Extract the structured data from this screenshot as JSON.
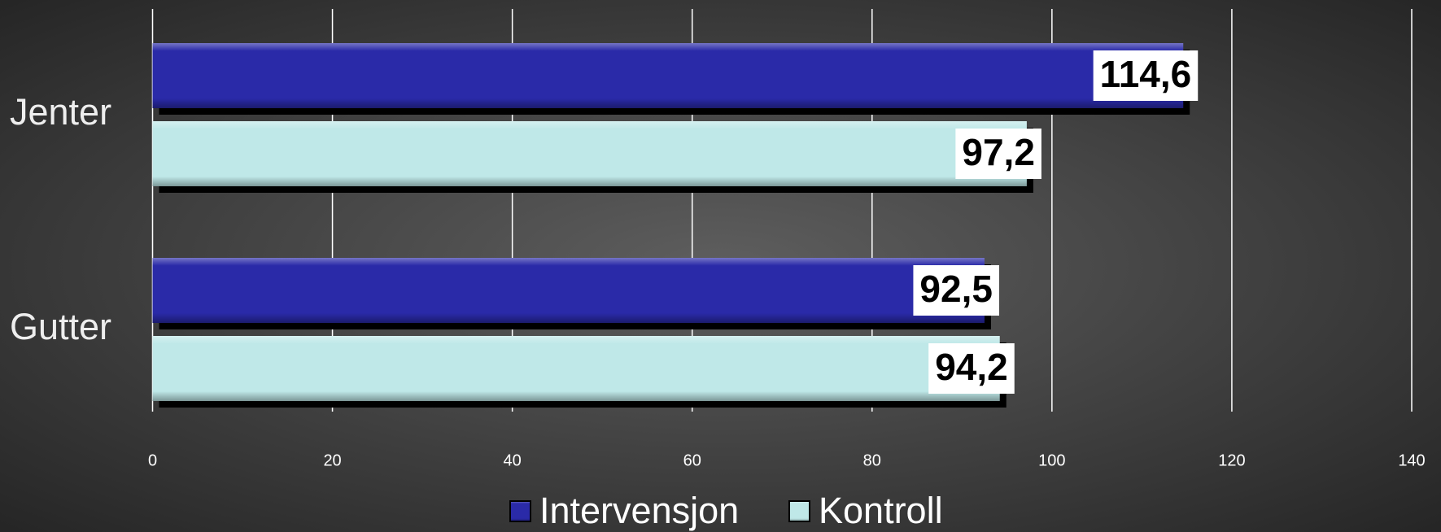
{
  "chart_data": {
    "type": "bar",
    "orientation": "horizontal",
    "categories": [
      "Jenter",
      "Gutter"
    ],
    "series": [
      {
        "name": "Intervensjon",
        "color": "#2a2aa8",
        "values": [
          114.6,
          92.5
        ],
        "value_labels": [
          "114,6",
          "92,5"
        ]
      },
      {
        "name": "Kontroll",
        "color": "#bfe8e8",
        "values": [
          97.2,
          94.2
        ],
        "value_labels": [
          "97,2",
          "94,2"
        ]
      }
    ],
    "xlim": [
      0,
      140
    ],
    "xticks": [
      0,
      20,
      40,
      60,
      80,
      100,
      120,
      140
    ],
    "grid": true,
    "legend": "bottom"
  }
}
